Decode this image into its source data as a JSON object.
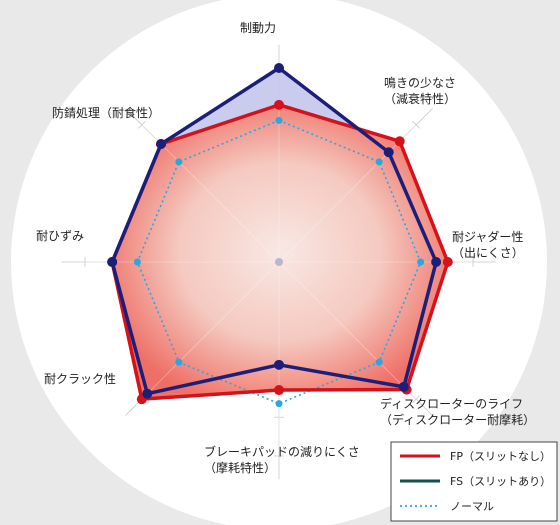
{
  "chart_data": {
    "type": "radar",
    "axes": [
      {
        "lines": [
          "制動力"
        ]
      },
      {
        "lines": [
          "鳴きの少なさ",
          "（減衰特性）"
        ]
      },
      {
        "lines": [
          "耐ジャダー性",
          "（出にくさ）"
        ]
      },
      {
        "lines": [
          "ディスクローターのライフ",
          "（ディスクローター耐摩耗）"
        ]
      },
      {
        "lines": [
          "ブレーキパッドの減りにくさ",
          "（摩耗特性）"
        ]
      },
      {
        "lines": [
          "耐クラック性"
        ]
      },
      {
        "lines": [
          "耐ひずみ"
        ]
      },
      {
        "lines": [
          "防錆処理（耐食性）"
        ]
      }
    ],
    "range": [
      0,
      1
    ],
    "series": [
      {
        "name": "FP（スリットなし）",
        "values": [
          0.81,
          0.88,
          0.87,
          0.93,
          0.66,
          1.0,
          0.86,
          0.86
        ],
        "stroke": "#d4121c",
        "fill": "#f0665e",
        "style": "solid"
      },
      {
        "name": "FS（スリットあり）",
        "values": [
          1.0,
          0.8,
          0.81,
          0.91,
          0.53,
          0.96,
          0.86,
          0.86
        ],
        "stroke": "#1c1f7a",
        "fill": "#8a8dd8",
        "style": "solid"
      },
      {
        "name": "ノーマル",
        "values": [
          0.73,
          0.73,
          0.73,
          0.73,
          0.73,
          0.73,
          0.73,
          0.73
        ],
        "stroke": "#2aa6e0",
        "style": "dotted"
      }
    ],
    "legend_position": "bottom-right",
    "grid": true
  }
}
